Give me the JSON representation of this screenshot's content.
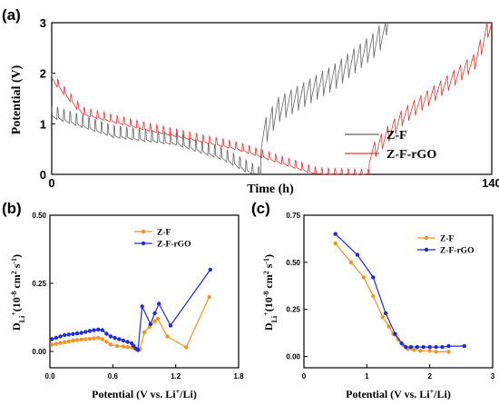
{
  "panel_labels": [
    "(a)",
    "(b)",
    "(c)"
  ],
  "chart_data": [
    {
      "type": "line",
      "panel": "(a)",
      "xlabel": "Time (h)",
      "ylabel": "Potential (V)",
      "xlim": [
        0,
        140
      ],
      "ylim": [
        0,
        3
      ],
      "x_ticks": [
        "0",
        "140"
      ],
      "y_ticks": [
        "0",
        "1",
        "2",
        "3"
      ],
      "legend_position": "bottom-right",
      "grid": false,
      "series": [
        {
          "name": "Z-F",
          "color": "#666666",
          "discharge_trend": [
            [
              0,
              1.25
            ],
            [
              20,
              0.85
            ],
            [
              40,
              0.7
            ],
            [
              55,
              0.4
            ],
            [
              66.5,
              0.02
            ]
          ],
          "charge_trend": [
            [
              66.5,
              0.6
            ],
            [
              72,
              1.2
            ],
            [
              90,
              1.85
            ],
            [
              104,
              2.55
            ],
            [
              107,
              3.0
            ]
          ],
          "cycle_hours": 2.0,
          "pulse_height_v": 0.35
        },
        {
          "name": "Z-F-rGO",
          "color": "#ee3333",
          "discharge_trend": [
            [
              0,
              1.95
            ],
            [
              10,
              1.25
            ],
            [
              30,
              0.95
            ],
            [
              60,
              0.55
            ],
            [
              85,
              0.05
            ],
            [
              101,
              0.02
            ]
          ],
          "charge_trend": [
            [
              101,
              0.3
            ],
            [
              112,
              1.1
            ],
            [
              125,
              1.7
            ],
            [
              135,
              2.2
            ],
            [
              140,
              3.0
            ]
          ],
          "cycle_hours": 2.1,
          "pulse_height_v": 0.22
        }
      ]
    },
    {
      "type": "line",
      "panel": "(b)",
      "xlabel": "Potential (V vs. Li+/Li)",
      "ylabel": "DLi+(10-8 cm2 s-1)",
      "xlim": [
        0,
        1.8
      ],
      "ylim": [
        -0.06,
        0.5
      ],
      "x_ticks": [
        0.0,
        0.6,
        1.2,
        1.8
      ],
      "y_ticks": [
        0.0,
        0.25,
        0.5
      ],
      "x_tick_labels": [
        "0.0",
        "0.6",
        "1.2",
        "1.8"
      ],
      "y_tick_labels": [
        "0.00",
        "0.25",
        "0.50"
      ],
      "legend_position": "top-center",
      "series": [
        {
          "name": "Z-F",
          "color": "#f39422",
          "x": [
            0.02,
            0.06,
            0.1,
            0.14,
            0.18,
            0.22,
            0.26,
            0.3,
            0.34,
            0.38,
            0.42,
            0.46,
            0.5,
            0.54,
            0.58,
            0.64,
            0.7,
            0.74,
            0.78,
            0.8,
            0.82,
            0.84,
            0.86,
            0.9,
            0.95,
            1.0,
            1.03,
            1.12,
            1.3,
            1.52
          ],
          "y": [
            0.025,
            0.028,
            0.031,
            0.034,
            0.037,
            0.04,
            0.042,
            0.044,
            0.045,
            0.046,
            0.048,
            0.05,
            0.045,
            0.035,
            0.025,
            0.02,
            0.018,
            0.016,
            0.015,
            0.013,
            0.01,
            0.008,
            0.008,
            0.07,
            0.09,
            0.11,
            0.12,
            0.055,
            0.015,
            0.2
          ]
        },
        {
          "name": "Z-F-rGO",
          "color": "#1f2bd6",
          "x": [
            0.02,
            0.06,
            0.1,
            0.14,
            0.18,
            0.22,
            0.26,
            0.3,
            0.34,
            0.38,
            0.42,
            0.46,
            0.5,
            0.54,
            0.58,
            0.62,
            0.66,
            0.7,
            0.74,
            0.78,
            0.8,
            0.82,
            0.84,
            0.88,
            0.96,
            1.0,
            1.04,
            1.15,
            1.53
          ],
          "y": [
            0.045,
            0.05,
            0.055,
            0.06,
            0.062,
            0.064,
            0.066,
            0.068,
            0.072,
            0.075,
            0.078,
            0.08,
            0.078,
            0.065,
            0.055,
            0.05,
            0.045,
            0.04,
            0.035,
            0.03,
            0.02,
            0.01,
            0.005,
            0.165,
            0.1,
            0.14,
            0.175,
            0.095,
            0.3
          ]
        }
      ]
    },
    {
      "type": "line",
      "panel": "(c)",
      "xlabel": "Potential (V vs. Li+/Li)",
      "ylabel": "DLi+(10-8 cm2 s-1)",
      "xlim": [
        0,
        3
      ],
      "ylim": [
        -0.06,
        0.75
      ],
      "x_ticks": [
        0,
        1,
        2,
        3
      ],
      "y_ticks": [
        0.0,
        0.25,
        0.5,
        0.75
      ],
      "x_tick_labels": [
        "0",
        "1",
        "2",
        "3"
      ],
      "y_tick_labels": [
        "0.00",
        "0.25",
        "0.50",
        "0.75"
      ],
      "legend_position": "top-right",
      "series": [
        {
          "name": "Z-F",
          "color": "#f39422",
          "x": [
            0.5,
            0.75,
            0.95,
            1.1,
            1.25,
            1.35,
            1.42,
            1.5,
            1.58,
            1.65,
            1.75,
            1.85,
            2.0,
            2.1,
            2.3
          ],
          "y": [
            0.6,
            0.5,
            0.42,
            0.32,
            0.21,
            0.16,
            0.12,
            0.09,
            0.06,
            0.04,
            0.035,
            0.03,
            0.03,
            0.025,
            0.025
          ]
        },
        {
          "name": "Z-F-rGO",
          "color": "#1f2bd6",
          "x": [
            0.5,
            0.85,
            1.1,
            1.3,
            1.45,
            1.55,
            1.62,
            1.7,
            1.8,
            1.9,
            2.0,
            2.1,
            2.2,
            2.3,
            2.55
          ],
          "y": [
            0.65,
            0.54,
            0.42,
            0.23,
            0.12,
            0.07,
            0.05,
            0.05,
            0.05,
            0.05,
            0.05,
            0.05,
            0.05,
            0.055,
            0.055
          ]
        }
      ]
    }
  ]
}
